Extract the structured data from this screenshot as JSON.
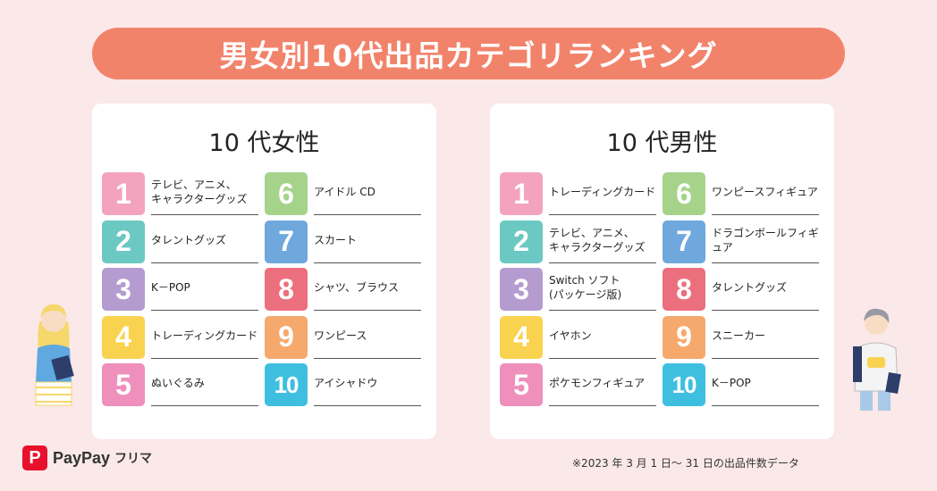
{
  "title": "男女別10代出品カテゴリランキング",
  "women": {
    "heading": "10 代女性",
    "items": [
      {
        "rank": "1",
        "label": "テレビ、アニメ、\nキャラクターグッズ",
        "color": "#f4a3be"
      },
      {
        "rank": "2",
        "label": "タレントグッズ",
        "color": "#6cc8c3"
      },
      {
        "rank": "3",
        "label": "K－POP",
        "color": "#b49bd0"
      },
      {
        "rank": "4",
        "label": "トレーディングカード",
        "color": "#f9d34f"
      },
      {
        "rank": "5",
        "label": "ぬいぐるみ",
        "color": "#ef8fbc"
      },
      {
        "rank": "6",
        "label": "アイドル CD",
        "color": "#a6d38a"
      },
      {
        "rank": "7",
        "label": "スカート",
        "color": "#6fa8dc"
      },
      {
        "rank": "8",
        "label": "シャツ、ブラウス",
        "color": "#ec6f7e"
      },
      {
        "rank": "9",
        "label": "ワンピース",
        "color": "#f6a96c"
      },
      {
        "rank": "10",
        "label": "アイシャドウ",
        "color": "#3fbfe0"
      }
    ]
  },
  "men": {
    "heading": "10 代男性",
    "items": [
      {
        "rank": "1",
        "label": "トレーディングカード",
        "color": "#f4a3be"
      },
      {
        "rank": "2",
        "label": "テレビ、アニメ、\nキャラクターグッズ",
        "color": "#6cc8c3"
      },
      {
        "rank": "3",
        "label": "Switch ソフト\n(パッケージ版)",
        "color": "#b49bd0"
      },
      {
        "rank": "4",
        "label": "イヤホン",
        "color": "#f9d34f"
      },
      {
        "rank": "5",
        "label": "ポケモンフィギュア",
        "color": "#ef8fbc"
      },
      {
        "rank": "6",
        "label": "ワンピースフィギュア",
        "color": "#a6d38a"
      },
      {
        "rank": "7",
        "label": "ドラゴンボールフィギュア",
        "color": "#6fa8dc"
      },
      {
        "rank": "8",
        "label": "タレントグッズ",
        "color": "#ec6f7e"
      },
      {
        "rank": "9",
        "label": "スニーカー",
        "color": "#f6a96c"
      },
      {
        "rank": "10",
        "label": "K－POP",
        "color": "#3fbfe0"
      }
    ]
  },
  "logo": {
    "mark": "P",
    "name": "PayPay",
    "sub": "フリマ"
  },
  "footnote": "※2023 年 3 月 1 日～ 31 日の出品件数データ"
}
